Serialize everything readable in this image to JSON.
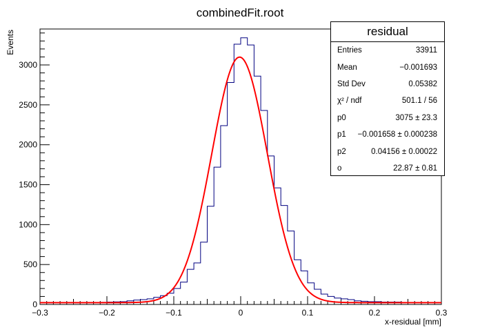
{
  "chart_data": {
    "type": "histogram",
    "title": "combinedFit.root",
    "xlabel": "x-residual [mm]",
    "ylabel": "Events",
    "xlim": [
      -0.3,
      0.3
    ],
    "ylim": [
      0,
      3450
    ],
    "x_ticks": [
      -0.3,
      -0.2,
      -0.1,
      0,
      0.1,
      0.2,
      0.3
    ],
    "x_tick_labels": [
      "−0.3",
      "−0.2",
      "−0.1",
      "0",
      "0.1",
      "0.2",
      "0.3"
    ],
    "y_ticks": [
      0,
      500,
      1000,
      1500,
      2000,
      2500,
      3000
    ],
    "y_tick_labels": [
      "0",
      "500",
      "1000",
      "1500",
      "2000",
      "2500",
      "3000"
    ],
    "grid": false,
    "histogram": {
      "color": "#000080",
      "bin_edges": [
        -0.3,
        -0.29,
        -0.28,
        -0.27,
        -0.26,
        -0.25,
        -0.24,
        -0.23,
        -0.22,
        -0.21,
        -0.2,
        -0.19,
        -0.18,
        -0.17,
        -0.16,
        -0.15,
        -0.14,
        -0.13,
        -0.12,
        -0.11,
        -0.1,
        -0.09,
        -0.08,
        -0.07,
        -0.06,
        -0.05,
        -0.04,
        -0.03,
        -0.02,
        -0.01,
        0,
        0.01,
        0.02,
        0.03,
        0.04,
        0.05,
        0.06,
        0.07,
        0.08,
        0.09,
        0.1,
        0.11,
        0.12,
        0.13,
        0.14,
        0.15,
        0.16,
        0.17,
        0.18,
        0.19,
        0.2,
        0.21,
        0.22,
        0.23,
        0.24,
        0.25,
        0.26,
        0.27,
        0.28,
        0.29,
        0.3
      ],
      "counts": [
        25,
        20,
        22,
        25,
        22,
        20,
        24,
        25,
        23,
        27,
        30,
        32,
        35,
        45,
        55,
        60,
        70,
        90,
        110,
        140,
        200,
        280,
        440,
        520,
        780,
        1230,
        1720,
        2240,
        2780,
        3260,
        3340,
        3250,
        2860,
        2430,
        1860,
        1460,
        1240,
        920,
        560,
        420,
        270,
        190,
        130,
        100,
        80,
        70,
        60,
        45,
        40,
        35,
        35,
        30,
        30,
        30,
        25,
        25,
        25,
        25,
        22,
        20
      ]
    },
    "fit": {
      "color": "#ff0000",
      "type": "gaussian+constant",
      "p0": 3075,
      "p1": -0.001658,
      "p2": 0.04156,
      "o": 22.87
    },
    "legend_position": "top-right"
  },
  "stats_box": {
    "title": "residual",
    "rows": [
      {
        "label": "Entries",
        "value": "33911"
      },
      {
        "label": "Mean",
        "value": "−0.001693"
      },
      {
        "label": "Std Dev",
        "value": "0.05382"
      },
      {
        "label": "χ² / ndf",
        "value": "501.1 / 56"
      },
      {
        "label": "p0",
        "value": "3075 ± 23.3"
      },
      {
        "label": "p1",
        "value": "−0.001658 ± 0.000238"
      },
      {
        "label": "p2",
        "value": "0.04156 ± 0.00022"
      },
      {
        "label": "o",
        "value": "22.87 ± 0.81"
      }
    ]
  }
}
